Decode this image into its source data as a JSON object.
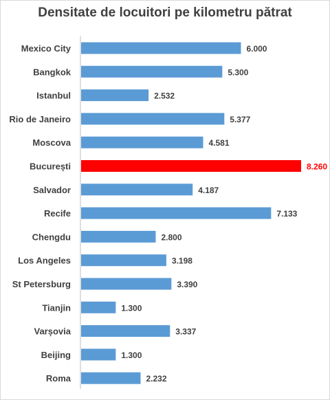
{
  "chart_data": {
    "type": "bar",
    "orientation": "horizontal",
    "title": "Densitate de locuitori pe kilometru pătrat",
    "categories": [
      "Mexico City",
      "Bangkok",
      "Istanbul",
      "Rio de Janeiro",
      "Moscova",
      "București",
      "Salvador",
      "Recife",
      "Chengdu",
      "Los Angeles",
      "St Petersburg",
      "Tianjin",
      "Varșovia",
      "Beijing",
      "Roma"
    ],
    "values": [
      6000,
      5300,
      2532,
      5377,
      4581,
      8260,
      4187,
      7133,
      2800,
      3198,
      3390,
      1300,
      3337,
      1300,
      2232
    ],
    "value_labels": [
      "6.000",
      "5.300",
      "2.532",
      "5.377",
      "4.581",
      "8.260",
      "4.187",
      "7.133",
      "2.800",
      "3.198",
      "3.390",
      "1.300",
      "3.337",
      "1.300",
      "2.232"
    ],
    "xlim": [
      0,
      8260
    ],
    "bar_color": "#5b9bd5",
    "highlight_color": "#ff0000",
    "highlight_index": 5,
    "grid": false,
    "legend": "none"
  }
}
